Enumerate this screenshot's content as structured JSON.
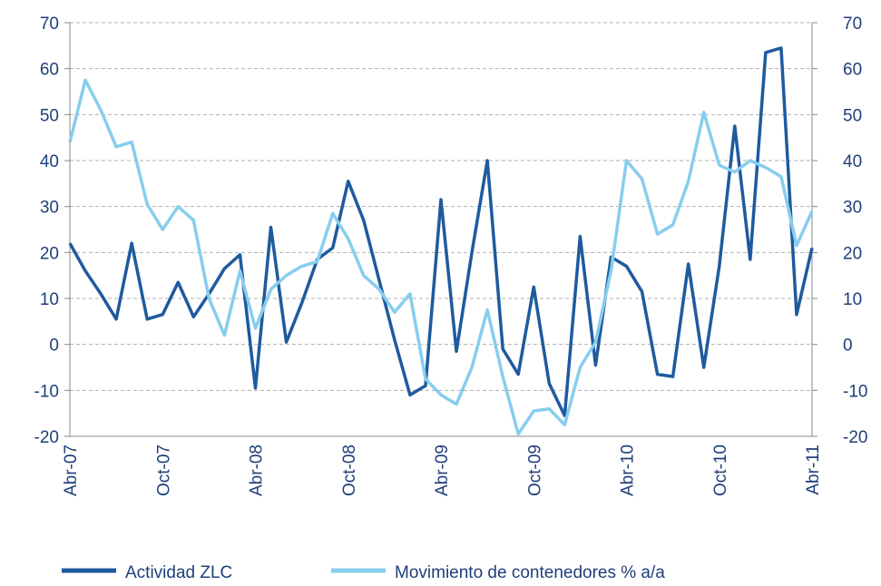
{
  "chart_data": {
    "type": "line",
    "categories": [
      "Abr-07",
      null,
      null,
      null,
      null,
      null,
      "Oct-07",
      null,
      null,
      null,
      null,
      null,
      "Abr-08",
      null,
      null,
      null,
      null,
      null,
      "Oct-08",
      null,
      null,
      null,
      null,
      null,
      "Abr-09",
      null,
      null,
      null,
      null,
      null,
      "Oct-09",
      null,
      null,
      null,
      null,
      null,
      "Abr-10",
      null,
      null,
      null,
      null,
      null,
      "Oct-10",
      null,
      null,
      null,
      null,
      null,
      "Abr-11"
    ],
    "series": [
      {
        "name": "Actividad ZLC",
        "color": "#1f5a9e",
        "values": [
          22,
          16,
          11,
          5.5,
          22,
          5.5,
          6.5,
          13.5,
          6,
          11,
          16.5,
          19.5,
          -9.5,
          25.5,
          0.5,
          9,
          18.5,
          21,
          35.5,
          27,
          14,
          1,
          -11,
          -9,
          31.5,
          -1.5,
          20,
          40,
          -1,
          -6.5,
          12.5,
          -8.5,
          -15.5,
          23.5,
          -4.5,
          19,
          17,
          11.5,
          -6.5,
          -7,
          17.5,
          -5,
          17,
          47.5,
          18.5,
          63.5,
          64.5,
          6.5,
          21
        ]
      },
      {
        "name": "Movimiento de contenedores % a/a",
        "color": "#87cdee",
        "axis": "y2",
        "values": [
          44,
          57.5,
          51,
          43,
          44,
          30.5,
          25,
          30,
          27,
          10,
          2,
          16,
          3.5,
          12,
          15,
          17,
          18,
          28.5,
          23,
          15,
          12,
          7,
          11,
          -7.5,
          -11,
          -13,
          -5,
          7.5,
          -7,
          -19.5,
          -14.5,
          -14,
          -17.5,
          -5,
          0.5,
          16,
          40,
          36,
          24,
          26,
          35.5,
          50.5,
          39,
          37.5,
          40,
          38.5,
          36.5,
          21.5,
          29
        ]
      }
    ],
    "ylim": [
      -20,
      70
    ],
    "yticks": [
      -20,
      -10,
      0,
      10,
      20,
      30,
      40,
      50,
      60,
      70
    ],
    "y2lim": [
      -20,
      70
    ],
    "y2ticks": [
      -20,
      -10,
      0,
      10,
      20,
      30,
      40,
      50,
      60,
      70
    ],
    "grid": true
  }
}
